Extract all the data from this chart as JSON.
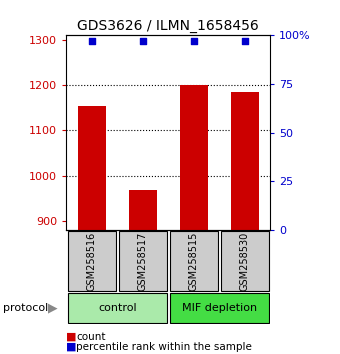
{
  "title": "GDS3626 / ILMN_1658456",
  "samples": [
    "GSM258516",
    "GSM258517",
    "GSM258515",
    "GSM258530"
  ],
  "bar_values": [
    1155,
    968,
    1200,
    1185
  ],
  "percentile_values": [
    97,
    97,
    97,
    97
  ],
  "ylim_left": [
    880,
    1310
  ],
  "ylim_right": [
    0,
    100
  ],
  "yticks_left": [
    900,
    1000,
    1100,
    1200,
    1300
  ],
  "yticks_right": [
    0,
    25,
    50,
    75,
    100
  ],
  "ytick_labels_right": [
    "0",
    "25",
    "50",
    "75",
    "100%"
  ],
  "bar_color": "#cc0000",
  "scatter_color": "#0000cc",
  "groups": [
    {
      "label": "control",
      "indices": [
        0,
        1
      ],
      "color": "#aaeaaa"
    },
    {
      "label": "MIF depletion",
      "indices": [
        2,
        3
      ],
      "color": "#44dd44"
    }
  ],
  "protocol_label": "protocol",
  "bg_color": "#ffffff",
  "tick_label_color_left": "#cc0000",
  "tick_label_color_right": "#0000cc",
  "sample_box_color": "#cccccc"
}
